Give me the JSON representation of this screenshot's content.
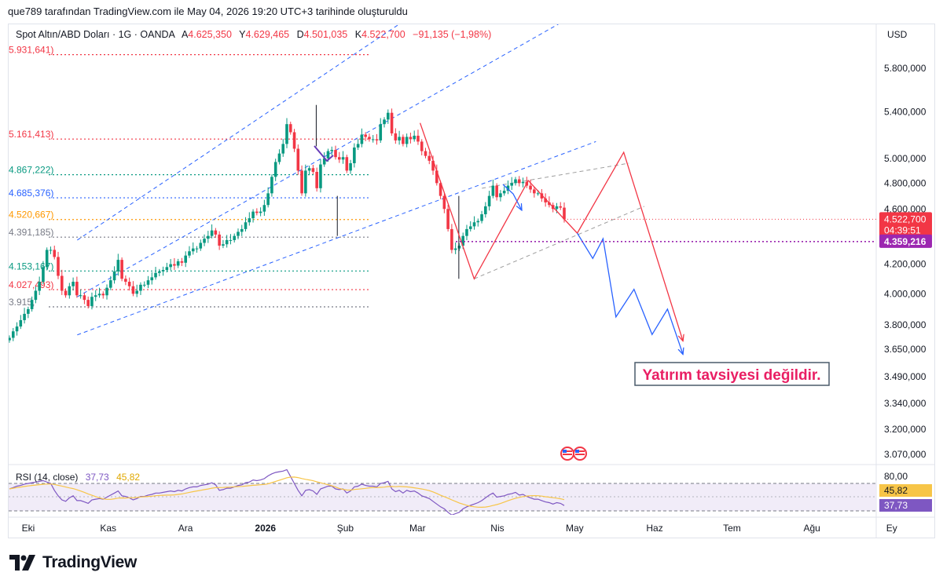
{
  "header": {
    "text": "que789 tarafından TradingView.com ile May 04, 2026 19:20 UTC+3 tarihinde oluşturuldu"
  },
  "legend": {
    "symbol": "Spot Altın/ABD Doları · 1G · OANDA",
    "o_label": "A",
    "o_value": "4.625,350",
    "h_label": "Y",
    "h_value": "4.629,465",
    "l_label": "D",
    "l_value": "4.501,035",
    "c_label": "K",
    "c_value": "4.522,700",
    "change": "−91,135 (−1,98%)"
  },
  "currency": "USD",
  "annotation": "Yatırım tavsiyesi değildir.",
  "footer": {
    "brand": "TradingView"
  },
  "colors": {
    "up": "#089981",
    "down": "#f23645",
    "channel": "#2962ff",
    "rsi": "#7e57c2",
    "rsi_ma": "#f7c548",
    "annotation": "#e91e63",
    "support": "#9c27b0"
  },
  "chart_data": {
    "type": "candlestick",
    "instrument": "Spot Altın/ABD Doları",
    "timeframe": "1G",
    "price_axis": {
      "scale": "log",
      "ticks": [
        "5.800,000",
        "5.400,000",
        "5.000,000",
        "4.800,000",
        "4.600,000",
        "4.200,000",
        "4.000,000",
        "3.800,000",
        "3.650,000",
        "3.490,000",
        "3.340,000",
        "3.200,000",
        "3.070,000"
      ],
      "last_price": "4.522,700",
      "countdown": "04:39:51",
      "support_label": "4.359,216"
    },
    "time_axis": [
      "Eki",
      "Kas",
      "Ara",
      "2026",
      "Şub",
      "Mar",
      "Nis",
      "May",
      "Haz",
      "Tem",
      "Ağu",
      "Ey"
    ],
    "fib_levels": [
      {
        "label": "5.931,641)",
        "color": "#f23645",
        "style": "dotted"
      },
      {
        "label": "5.161,413)",
        "color": "#f23645",
        "style": "dotted"
      },
      {
        "label": "4.867,222)",
        "color": "#089981",
        "style": "dotted"
      },
      {
        "label": "4.685,376)",
        "color": "#2962ff",
        "style": "dotted"
      },
      {
        "label": "4.520,667)",
        "color": "#ff9800",
        "style": "dotted"
      },
      {
        "label": "4.391,185)",
        "color": "#787b86",
        "style": "dotted"
      },
      {
        "label": "4.153,167)",
        "color": "#089981",
        "style": "dotted"
      },
      {
        "label": "4.027,493)",
        "color": "#f23645",
        "style": "dotted"
      },
      {
        "label": "3.915,",
        "color": "#787b86",
        "style": "dotted"
      }
    ],
    "closes": [
      3720,
      3760,
      3790,
      3830,
      3870,
      3900,
      3960,
      4020,
      4080,
      4180,
      4300,
      4300,
      4250,
      4120,
      4020,
      3990,
      4050,
      4080,
      3990,
      3990,
      3960,
      3920,
      3980,
      3990,
      4000,
      3990,
      4040,
      4090,
      4150,
      4230,
      4100,
      4080,
      4050,
      4000,
      4020,
      4060,
      4060,
      4090,
      4110,
      4140,
      4150,
      4160,
      4180,
      4200,
      4190,
      4220,
      4210,
      4260,
      4290,
      4310,
      4310,
      4350,
      4380,
      4400,
      4440,
      4410,
      4330,
      4340,
      4370,
      4370,
      4400,
      4430,
      4450,
      4500,
      4530,
      4580,
      4570,
      4580,
      4630,
      4720,
      4850,
      4970,
      5040,
      5120,
      5290,
      5220,
      5080,
      4900,
      4720,
      4900,
      4920,
      4890,
      4760,
      4950,
      5000,
      5060,
      5070,
      5010,
      4990,
      5010,
      4900,
      4960,
      5090,
      5120,
      5200,
      5180,
      5160,
      5160,
      5150,
      5290,
      5330,
      5390,
      5210,
      5150,
      5180,
      5120,
      5180,
      5160,
      5190,
      5140,
      5060,
      5020,
      4980,
      4900,
      4800,
      4700,
      4600,
      4450,
      4300,
      4310,
      4330,
      4400,
      4450,
      4470,
      4500,
      4510,
      4560,
      4620,
      4700,
      4780,
      4690,
      4720,
      4740,
      4780,
      4800,
      4830,
      4800,
      4810,
      4780,
      4750,
      4720,
      4720,
      4680,
      4650,
      4630,
      4600,
      4620,
      4610,
      4522.7
    ],
    "annotation_paths": {
      "red_zigzag": [
        [
          "2026-03-02",
          5300
        ],
        [
          "2026-03-23",
          4100
        ],
        [
          "2026-04-13",
          4820
        ],
        [
          "2026-05-02",
          4420
        ],
        [
          "2026-05-20",
          5050
        ],
        [
          "2026-06-12",
          3700
        ]
      ],
      "blue_projection": [
        [
          "2026-05-02",
          4420
        ],
        [
          "2026-05-08",
          4240
        ],
        [
          "2026-05-12",
          4380
        ],
        [
          "2026-05-17",
          3850
        ],
        [
          "2026-05-24",
          4030
        ],
        [
          "2026-05-31",
          3740
        ],
        [
          "2026-06-06",
          3900
        ],
        [
          "2026-06-12",
          3620
        ]
      ]
    },
    "rsi": {
      "label": "RSI (14, close)",
      "value_rsi": "37,73",
      "value_ma": "45,82",
      "axis_top": "80,00",
      "values": [
        62,
        64,
        66,
        67,
        69,
        70,
        71,
        72,
        73,
        74,
        72,
        70,
        60,
        52,
        46,
        44,
        49,
        52,
        45,
        45,
        43,
        41,
        46,
        47,
        48,
        47,
        50,
        53,
        56,
        59,
        52,
        51,
        49,
        46,
        48,
        51,
        51,
        53,
        54,
        56,
        56,
        57,
        58,
        59,
        58,
        60,
        59,
        62,
        64,
        65,
        65,
        67,
        68,
        69,
        71,
        68,
        60,
        61,
        63,
        63,
        65,
        67,
        68,
        71,
        72,
        75,
        74,
        75,
        77,
        81,
        84,
        86,
        87,
        88,
        90,
        80,
        70,
        60,
        52,
        60,
        61,
        59,
        54,
        62,
        64,
        66,
        66,
        62,
        61,
        62,
        56,
        59,
        65,
        66,
        69,
        67,
        66,
        66,
        65,
        70,
        71,
        73,
        62,
        58,
        60,
        56,
        60,
        58,
        59,
        56,
        52,
        50,
        48,
        44,
        40,
        36,
        33,
        28,
        24,
        26,
        28,
        33,
        36,
        38,
        40,
        42,
        45,
        49,
        53,
        56,
        50,
        51,
        52,
        54,
        55,
        57,
        53,
        54,
        51,
        49,
        47,
        47,
        45,
        43,
        42,
        40,
        42,
        41,
        37.73
      ]
    }
  }
}
